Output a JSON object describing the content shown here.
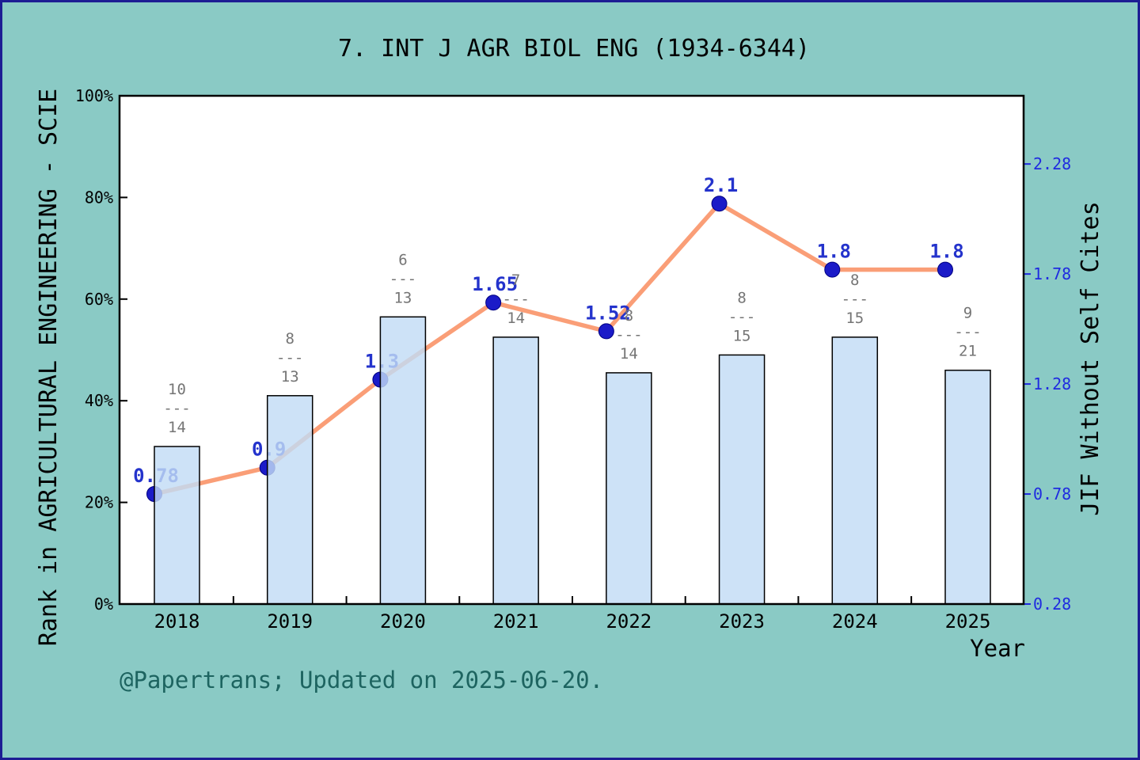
{
  "title": "7. INT J AGR BIOL ENG (1934-6344)",
  "footer": "@Papertrans; Updated on 2025-06-20.",
  "chart_data": {
    "type": "bar+line",
    "categories": [
      "2018",
      "2019",
      "2020",
      "2021",
      "2022",
      "2023",
      "2024",
      "2025"
    ],
    "series": [
      {
        "name": "Rank in AGRICULTURAL ENGINEERING - SCIE",
        "type": "bar",
        "axis": "left",
        "unit": "%",
        "values": [
          31,
          41,
          56.5,
          52.5,
          45.5,
          49,
          52.5,
          46
        ],
        "fraction_labels": [
          {
            "num": "10",
            "den": "14"
          },
          {
            "num": "8",
            "den": "13"
          },
          {
            "num": "6",
            "den": "13"
          },
          {
            "num": "7",
            "den": "14"
          },
          {
            "num": "8",
            "den": "14"
          },
          {
            "num": "8",
            "den": "15"
          },
          {
            "num": "8",
            "den": "15"
          },
          {
            "num": "9",
            "den": "21"
          }
        ]
      },
      {
        "name": "JIF Without Self Cites",
        "type": "line",
        "axis": "right",
        "values": [
          0.78,
          0.9,
          1.3,
          1.65,
          1.52,
          2.1,
          1.8,
          1.8
        ],
        "point_labels": [
          "0.78",
          "0.9",
          "1.3",
          "1.65",
          "1.52",
          "2.1",
          "1.8",
          "1.8"
        ]
      }
    ],
    "xlabel": "Year",
    "ylabel_left": "Rank in AGRICULTURAL ENGINEERING - SCIE",
    "ylabel_right": "JIF Without Self Cites",
    "left_axis": {
      "min": 0,
      "max": 100,
      "tick_values": [
        0,
        20,
        40,
        60,
        80,
        100
      ],
      "tick_labels": [
        "0%",
        "20%",
        "40%",
        "60%",
        "80%",
        "100%"
      ]
    },
    "right_axis": {
      "min": 0.28,
      "max": 2.59,
      "tick_values": [
        0.28,
        0.78,
        1.28,
        1.78,
        2.28
      ],
      "tick_labels": [
        "0.28",
        "0.78",
        "1.28",
        "1.78",
        "2.28"
      ]
    },
    "grid": false,
    "legend": "none",
    "colors": {
      "background": "#8ACAC5",
      "plot_background": "#FFFFFF",
      "bar_fill": "#C2DCF5",
      "bar_border": "#000000",
      "line": "#FA9E77",
      "marker": "#1B1BC8",
      "marker_edge": "#000080",
      "value_label": "#2433CC",
      "fraction_label": "#757575",
      "right_axis_text": "#1F2AE0",
      "footer_text": "#1D6460",
      "axis": "#000000"
    }
  }
}
